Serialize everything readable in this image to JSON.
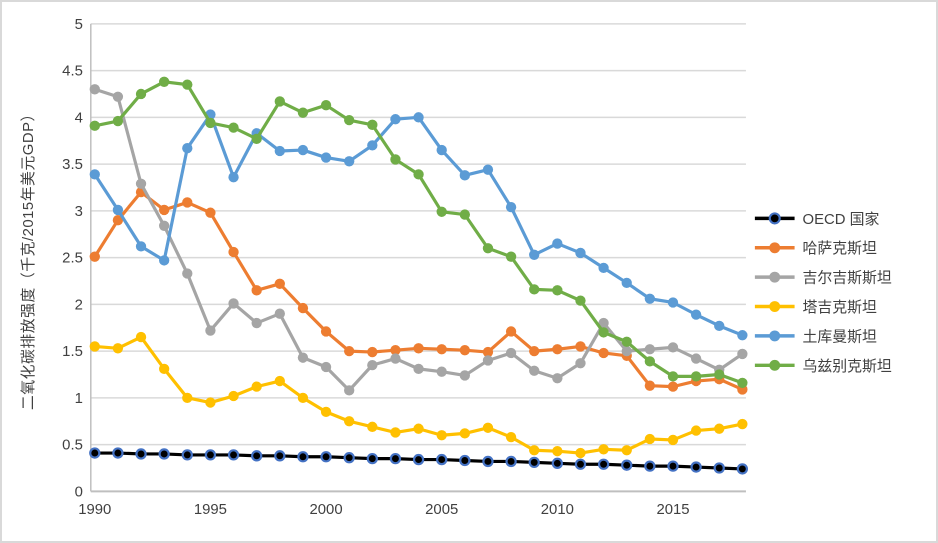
{
  "chart_data": {
    "type": "line",
    "title": "",
    "ylabel": "二氧化碳排放强度（千克/2015年美元GDP）",
    "xlabel": "",
    "x": [
      1990,
      1991,
      1992,
      1993,
      1994,
      1995,
      1996,
      1997,
      1998,
      1999,
      2000,
      2001,
      2002,
      2003,
      2004,
      2005,
      2006,
      2007,
      2008,
      2009,
      2010,
      2011,
      2012,
      2013,
      2014,
      2015,
      2016,
      2017,
      2018
    ],
    "x_tick_labels": [
      "1990",
      "1995",
      "2000",
      "2005",
      "2010",
      "2015"
    ],
    "x_tick_values": [
      1990,
      1995,
      2000,
      2005,
      2010,
      2015
    ],
    "y_tick_labels": [
      "0",
      "0.5",
      "1",
      "1.5",
      "2",
      "2.5",
      "3",
      "3.5",
      "4",
      "4.5",
      "5"
    ],
    "y_tick_values": [
      0,
      0.5,
      1,
      1.5,
      2,
      2.5,
      3,
      3.5,
      4,
      4.5,
      5
    ],
    "ylim": [
      0,
      5
    ],
    "grid": true,
    "legend_position": "right",
    "series": [
      {
        "name": "OECD 国家",
        "slug": "oecd",
        "color": "#000000",
        "marker_ring": "#4472C4",
        "values": [
          0.41,
          0.41,
          0.4,
          0.4,
          0.39,
          0.39,
          0.39,
          0.38,
          0.38,
          0.37,
          0.37,
          0.36,
          0.35,
          0.35,
          0.34,
          0.34,
          0.33,
          0.32,
          0.32,
          0.31,
          0.3,
          0.29,
          0.29,
          0.28,
          0.27,
          0.27,
          0.26,
          0.25,
          0.24
        ]
      },
      {
        "name": "哈萨克斯坦",
        "slug": "kazakhstan",
        "color": "#ED7D31",
        "values": [
          2.51,
          2.9,
          3.2,
          3.01,
          3.09,
          2.98,
          2.56,
          2.15,
          2.22,
          1.96,
          1.71,
          1.5,
          1.49,
          1.51,
          1.53,
          1.52,
          1.51,
          1.49,
          1.71,
          1.5,
          1.52,
          1.55,
          1.48,
          1.45,
          1.13,
          1.12,
          1.18,
          1.2,
          1.09
        ]
      },
      {
        "name": "吉尔吉斯斯坦",
        "slug": "kyrgyzstan",
        "color": "#A5A5A5",
        "values": [
          4.3,
          4.22,
          3.29,
          2.84,
          2.33,
          1.72,
          2.01,
          1.8,
          1.9,
          1.43,
          1.33,
          1.08,
          1.35,
          1.42,
          1.31,
          1.28,
          1.24,
          1.4,
          1.48,
          1.29,
          1.21,
          1.37,
          1.8,
          1.5,
          1.52,
          1.54,
          1.42,
          1.3,
          1.47
        ]
      },
      {
        "name": "塔吉克斯坦",
        "slug": "tajikistan",
        "color": "#FFC000",
        "values": [
          1.55,
          1.53,
          1.65,
          1.31,
          1.0,
          0.95,
          1.02,
          1.12,
          1.18,
          1.0,
          0.85,
          0.75,
          0.69,
          0.63,
          0.67,
          0.6,
          0.62,
          0.68,
          0.58,
          0.44,
          0.43,
          0.41,
          0.45,
          0.44,
          0.56,
          0.55,
          0.65,
          0.67,
          0.72
        ]
      },
      {
        "name": "土库曼斯坦",
        "slug": "turkmenistan",
        "color": "#5B9BD5",
        "values": [
          3.39,
          3.01,
          2.62,
          2.47,
          3.67,
          4.03,
          3.36,
          3.83,
          3.64,
          3.65,
          3.57,
          3.53,
          3.7,
          3.98,
          4.0,
          3.65,
          3.38,
          3.44,
          3.04,
          2.53,
          2.65,
          2.55,
          2.39,
          2.23,
          2.06,
          2.02,
          1.89,
          1.77,
          1.67
        ]
      },
      {
        "name": "乌兹别克斯坦",
        "slug": "uzbekistan",
        "color": "#70AD47",
        "values": [
          3.91,
          3.96,
          4.25,
          4.38,
          4.35,
          3.94,
          3.89,
          3.77,
          4.17,
          4.05,
          4.13,
          3.97,
          3.92,
          3.55,
          3.39,
          2.99,
          2.96,
          2.6,
          2.51,
          2.16,
          2.15,
          2.04,
          1.7,
          1.6,
          1.39,
          1.23,
          1.23,
          1.25,
          1.16
        ]
      }
    ]
  },
  "styles": {
    "background": "#FFFFFF",
    "canvas_border_color": "#D9D9D9",
    "grid_color": "#D9D9D9",
    "axis_line_color": "#BFBFBF",
    "tick_label_color": "#404040",
    "oecd_marker_ring": "#4472C4"
  }
}
